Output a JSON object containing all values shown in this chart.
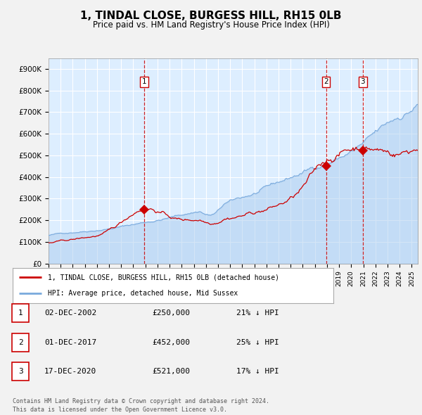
{
  "title": "1, TINDAL CLOSE, BURGESS HILL, RH15 0LB",
  "subtitle": "Price paid vs. HM Land Registry's House Price Index (HPI)",
  "title_fontsize": 11,
  "subtitle_fontsize": 8.5,
  "ylim": [
    0,
    950000
  ],
  "yticks": [
    0,
    100000,
    200000,
    300000,
    400000,
    500000,
    600000,
    700000,
    800000,
    900000
  ],
  "ytick_labels": [
    "£0",
    "£100K",
    "£200K",
    "£300K",
    "£400K",
    "£500K",
    "£600K",
    "£700K",
    "£800K",
    "£900K"
  ],
  "fig_bg_color": "#f2f2f2",
  "plot_bg_color": "#ddeeff",
  "grid_color": "#ffffff",
  "hpi_line_color": "#7aaadd",
  "hpi_fill_color": "#aaccee",
  "price_line_color": "#cc0000",
  "vline_color": "#cc0000",
  "sale_marker_color": "#cc0000",
  "sale_marker_style": "D",
  "sale_marker_size": 7,
  "sales": [
    {
      "date_num": 2002.92,
      "price": 250000,
      "label": "1"
    },
    {
      "date_num": 2017.92,
      "price": 452000,
      "label": "2"
    },
    {
      "date_num": 2020.96,
      "price": 521000,
      "label": "3"
    }
  ],
  "legend_items": [
    {
      "label": "1, TINDAL CLOSE, BURGESS HILL, RH15 0LB (detached house)",
      "color": "#cc0000"
    },
    {
      "label": "HPI: Average price, detached house, Mid Sussex",
      "color": "#7aaadd"
    }
  ],
  "table_rows": [
    {
      "num": "1",
      "date": "02-DEC-2002",
      "price": "£250,000",
      "hpi": "21% ↓ HPI"
    },
    {
      "num": "2",
      "date": "01-DEC-2017",
      "price": "£452,000",
      "hpi": "25% ↓ HPI"
    },
    {
      "num": "3",
      "date": "17-DEC-2020",
      "price": "£521,000",
      "hpi": "17% ↓ HPI"
    }
  ],
  "footer": "Contains HM Land Registry data © Crown copyright and database right 2024.\nThis data is licensed under the Open Government Licence v3.0.",
  "xstart": 1995,
  "xend": 2025.5
}
